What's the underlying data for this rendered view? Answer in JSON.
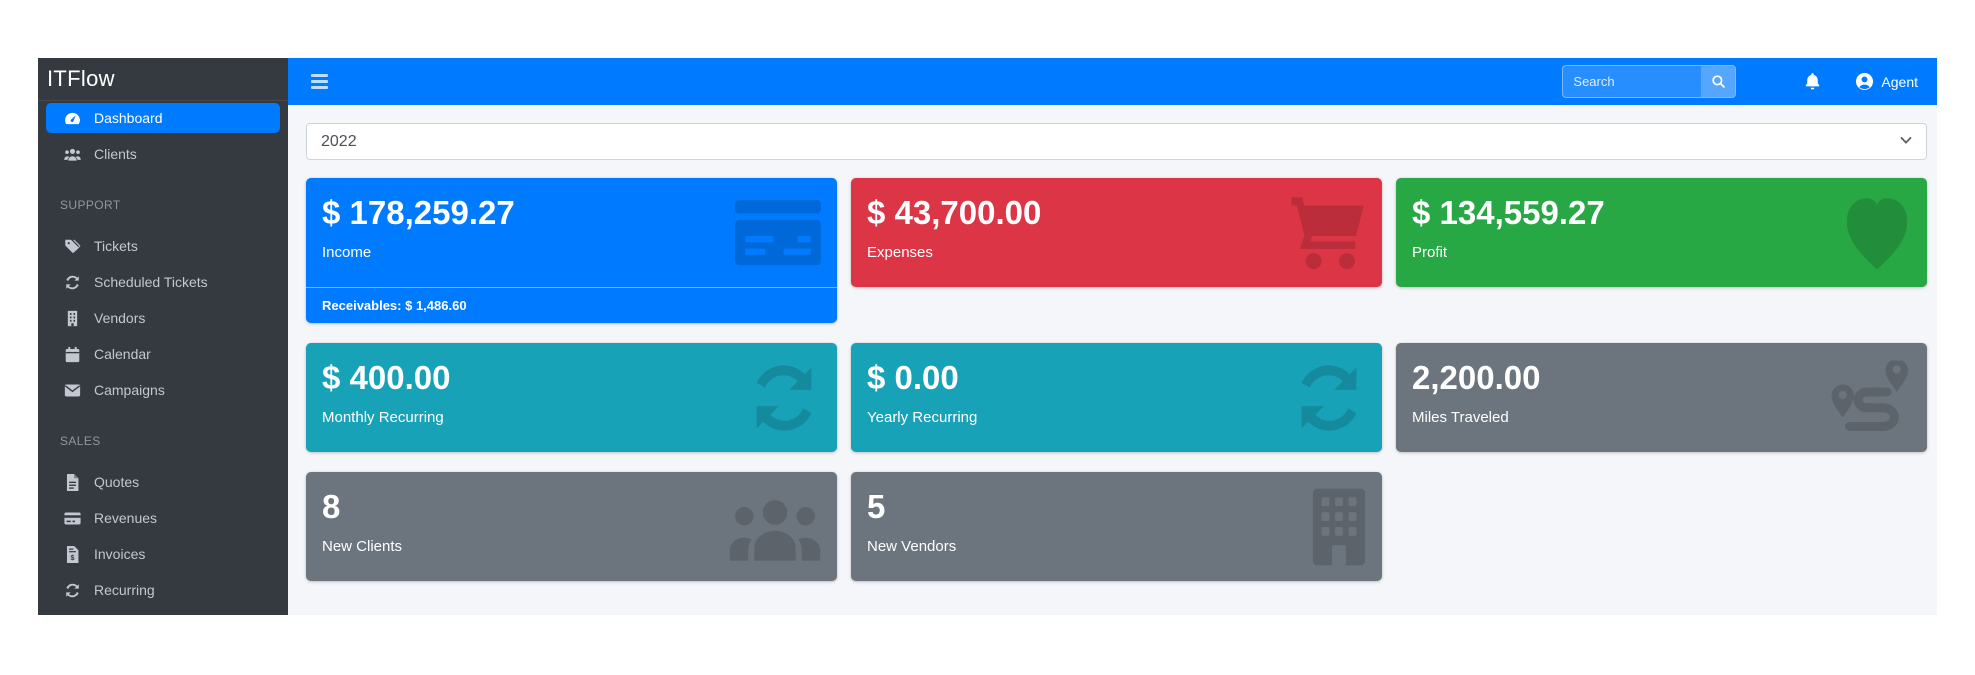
{
  "app": {
    "brand": "ITFlow"
  },
  "theme": {
    "navbar": "#007bff",
    "sidebar": "#343a40",
    "content_bg": "#f4f6f9"
  },
  "topbar": {
    "menu_icon": "hamburger-icon",
    "search": {
      "placeholder": "Search",
      "button_icon": "search-icon"
    },
    "notifications_icon": "bell-icon",
    "user": {
      "label": "Agent",
      "icon": "user-circle-icon"
    }
  },
  "sidebar": {
    "sections": [
      {
        "items": [
          {
            "label": "Dashboard",
            "icon": "tachometer-icon",
            "active": true
          },
          {
            "label": "Clients",
            "icon": "users-icon",
            "active": false
          }
        ]
      },
      {
        "header": "SUPPORT",
        "items": [
          {
            "label": "Tickets",
            "icon": "tags-icon",
            "active": false
          },
          {
            "label": "Scheduled Tickets",
            "icon": "sync-icon",
            "active": false
          },
          {
            "label": "Vendors",
            "icon": "building-icon",
            "active": false
          },
          {
            "label": "Calendar",
            "icon": "calendar-icon",
            "active": false
          },
          {
            "label": "Campaigns",
            "icon": "envelope-icon",
            "active": false
          }
        ]
      },
      {
        "header": "SALES",
        "items": [
          {
            "label": "Quotes",
            "icon": "file-lines-icon",
            "active": false
          },
          {
            "label": "Revenues",
            "icon": "credit-card-icon",
            "active": false
          },
          {
            "label": "Invoices",
            "icon": "file-invoice-dollar-icon",
            "active": false
          },
          {
            "label": "Recurring",
            "icon": "sync-icon",
            "active": false
          }
        ]
      }
    ]
  },
  "filters": {
    "year_selected": "2022"
  },
  "summary_cards": [
    {
      "value": "$ 178,259.27",
      "label": "Income",
      "footer": "Receivables: $ 1,486.60",
      "color": "#007bff",
      "icon": "credit-card-icon"
    },
    {
      "value": "$ 43,700.00",
      "label": "Expenses",
      "color": "#dc3545",
      "icon": "shopping-cart-icon"
    },
    {
      "value": "$ 134,559.27",
      "label": "Profit",
      "color": "#28a745",
      "icon": "heart-icon"
    },
    {
      "value": "$ 400.00",
      "label": "Monthly Recurring",
      "color": "#17a2b8",
      "icon": "sync-icon"
    },
    {
      "value": "$ 0.00",
      "label": "Yearly Recurring",
      "color": "#17a2b8",
      "icon": "sync-icon"
    },
    {
      "value": "2,200.00",
      "label": "Miles Traveled",
      "color": "#6c757d",
      "icon": "route-icon"
    },
    {
      "value": "8",
      "label": "New Clients",
      "color": "#6c757d",
      "icon": "users-icon"
    },
    {
      "value": "5",
      "label": "New Vendors",
      "color": "#6c757d",
      "icon": "building-icon"
    }
  ]
}
